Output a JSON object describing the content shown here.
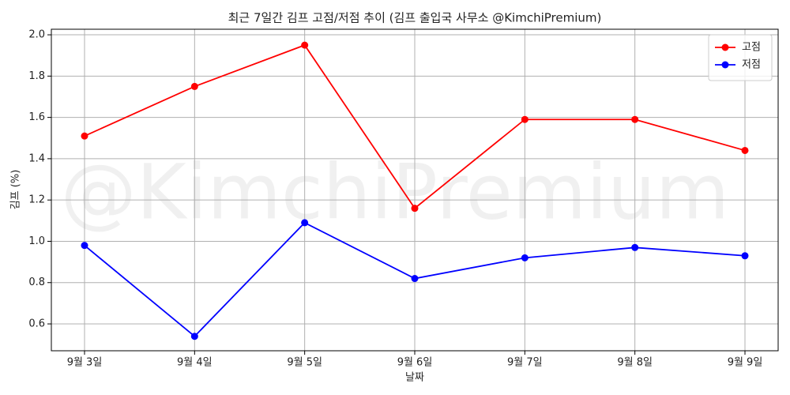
{
  "chart_data": {
    "type": "line",
    "title": "최근 7일간 김프 고점/저점 추이 (김프 출입국 사무소 @KimchiPremium)",
    "watermark": "@KimchiPremium",
    "x_label": "날짜",
    "y_label": "김프 (%)",
    "categories": [
      "9월 3일",
      "9월 4일",
      "9월 5일",
      "9월 6일",
      "9월 7일",
      "9월 8일",
      "9월 9일"
    ],
    "series": [
      {
        "name": "고점",
        "color": "#ff0000",
        "values": [
          1.51,
          1.75,
          1.95,
          1.16,
          1.59,
          1.59,
          1.44
        ]
      },
      {
        "name": "저점",
        "color": "#0000ff",
        "values": [
          0.98,
          0.54,
          1.09,
          0.82,
          0.92,
          0.97,
          0.93
        ]
      }
    ],
    "ylim": [
      0.47,
      2.027
    ],
    "yticks": [
      0.6,
      0.8,
      {
        "value": 1,
        "label": "1.0"
      },
      1.2,
      1.4,
      1.6,
      1.8,
      {
        "value": 2,
        "label": "2.0"
      }
    ],
    "grid": true,
    "legend": "upper right"
  }
}
